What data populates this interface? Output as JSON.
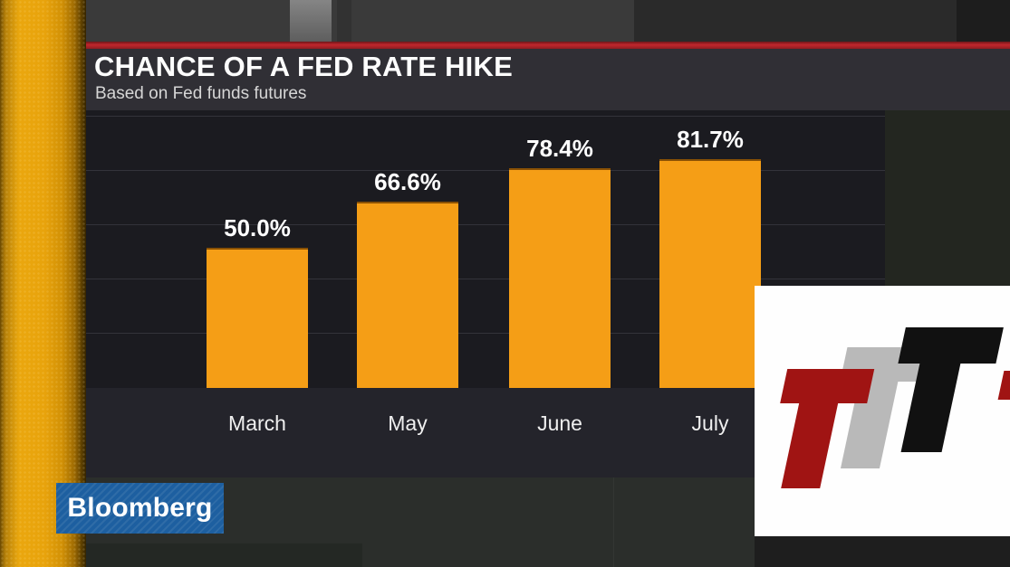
{
  "header": {
    "title": "CHANCE OF A FED RATE HIKE",
    "subtitle": "Based on Fed funds futures"
  },
  "chart_data": {
    "type": "bar",
    "title": "CHANCE OF A FED RATE HIKE",
    "subtitle": "Based on Fed funds futures",
    "categories": [
      "March",
      "May",
      "June",
      "July"
    ],
    "values": [
      50.0,
      66.6,
      78.4,
      81.7
    ],
    "value_labels": [
      "50.0%",
      "66.6%",
      "78.4%",
      "81.7%"
    ],
    "unit": "%",
    "ylim": [
      0,
      100
    ],
    "grid": "horizontal-only",
    "legend": "none",
    "bar_color": "#f59e16",
    "plot_background": "#1b1b20",
    "label_color": "#ffffff"
  },
  "branding": {
    "network_name": "Bloomberg",
    "logo_background": "#1d5fa0"
  },
  "watermark": {
    "description": "white box with three overlapping italic T letters",
    "letters": [
      "T",
      "T",
      "T"
    ],
    "colors": {
      "red": "#a01413",
      "gray": "#b9b9b9",
      "black": "#111111"
    }
  },
  "colors": {
    "accent_strip": "#e8a30c",
    "divider_line": "#c1272d",
    "title_band": "#302f35"
  }
}
